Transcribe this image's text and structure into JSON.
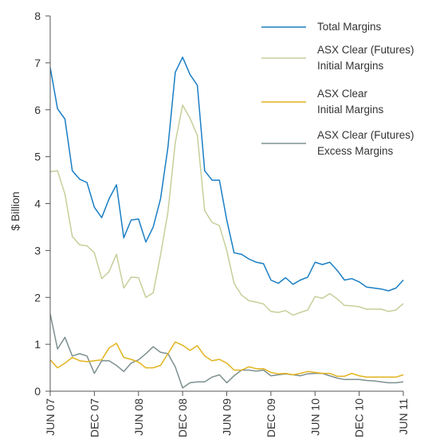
{
  "chart_data": {
    "type": "line",
    "ylabel": "$ Billion",
    "ylim": [
      0,
      8
    ],
    "y_ticks": [
      0,
      1,
      2,
      3,
      4,
      5,
      6,
      7,
      8
    ],
    "x_tick_labels": [
      "JUN 07",
      "DEC 07",
      "JUN 08",
      "DEC 08",
      "JUN 09",
      "DEC 09",
      "JUN 10",
      "DEC 10",
      "JUN 11"
    ],
    "x_tick_positions": [
      0,
      6,
      12,
      18,
      24,
      30,
      36,
      42,
      48
    ],
    "grid": false,
    "legend_position": "top-right",
    "x": [
      0,
      1,
      2,
      3,
      4,
      5,
      6,
      7,
      8,
      9,
      10,
      11,
      12,
      13,
      14,
      15,
      16,
      17,
      18,
      19,
      20,
      21,
      22,
      23,
      24,
      25,
      26,
      27,
      28,
      29,
      30,
      31,
      32,
      33,
      34,
      35,
      36,
      37,
      38,
      39,
      40,
      41,
      42,
      43,
      44,
      45,
      46,
      47,
      48
    ],
    "series": [
      {
        "name": "Total Margins",
        "color": "#1a7ec4",
        "values": [
          6.9,
          6.02,
          5.8,
          4.7,
          4.52,
          4.45,
          3.92,
          3.7,
          4.1,
          4.4,
          3.27,
          3.65,
          3.67,
          3.18,
          3.5,
          4.1,
          5.2,
          6.8,
          7.12,
          6.75,
          6.52,
          4.7,
          4.5,
          4.5,
          3.65,
          2.95,
          2.92,
          2.82,
          2.75,
          2.72,
          2.37,
          2.3,
          2.42,
          2.28,
          2.37,
          2.43,
          2.75,
          2.7,
          2.75,
          2.58,
          2.37,
          2.4,
          2.33,
          2.22,
          2.2,
          2.18,
          2.14,
          2.2,
          2.37
        ]
      },
      {
        "name": "ASX Clear (Futures)\nInitial Margins",
        "color": "#c6cf9a",
        "values": [
          4.68,
          4.7,
          4.2,
          3.3,
          3.12,
          3.1,
          2.95,
          2.4,
          2.55,
          2.92,
          2.2,
          2.43,
          2.42,
          2.0,
          2.1,
          2.9,
          3.82,
          5.3,
          6.1,
          5.82,
          5.45,
          3.85,
          3.6,
          3.53,
          3.0,
          2.3,
          2.05,
          1.93,
          1.9,
          1.86,
          1.7,
          1.68,
          1.72,
          1.62,
          1.68,
          1.73,
          2.02,
          1.98,
          2.08,
          1.97,
          1.83,
          1.82,
          1.8,
          1.75,
          1.75,
          1.75,
          1.7,
          1.73,
          1.87
        ]
      },
      {
        "name": "ASX Clear\nInitial Margins",
        "color": "#e2b41f",
        "values": [
          0.67,
          0.5,
          0.6,
          0.72,
          0.65,
          0.63,
          0.65,
          0.67,
          0.92,
          1.02,
          0.72,
          0.68,
          0.62,
          0.5,
          0.5,
          0.55,
          0.8,
          1.05,
          0.98,
          0.87,
          0.97,
          0.75,
          0.65,
          0.68,
          0.6,
          0.45,
          0.45,
          0.52,
          0.48,
          0.48,
          0.4,
          0.37,
          0.38,
          0.35,
          0.38,
          0.42,
          0.4,
          0.38,
          0.38,
          0.32,
          0.32,
          0.38,
          0.33,
          0.3,
          0.3,
          0.3,
          0.3,
          0.3,
          0.35
        ]
      },
      {
        "name": "ASX Clear (Futures)\nExcess Margins",
        "color": "#7e9090",
        "values": [
          1.65,
          0.9,
          1.15,
          0.75,
          0.8,
          0.75,
          0.38,
          0.65,
          0.65,
          0.55,
          0.42,
          0.6,
          0.67,
          0.8,
          0.95,
          0.83,
          0.8,
          0.52,
          0.07,
          0.18,
          0.2,
          0.2,
          0.3,
          0.35,
          0.18,
          0.33,
          0.45,
          0.45,
          0.43,
          0.45,
          0.33,
          0.35,
          0.37,
          0.35,
          0.33,
          0.37,
          0.38,
          0.38,
          0.33,
          0.28,
          0.25,
          0.25,
          0.25,
          0.23,
          0.22,
          0.2,
          0.18,
          0.18,
          0.2
        ]
      }
    ]
  }
}
